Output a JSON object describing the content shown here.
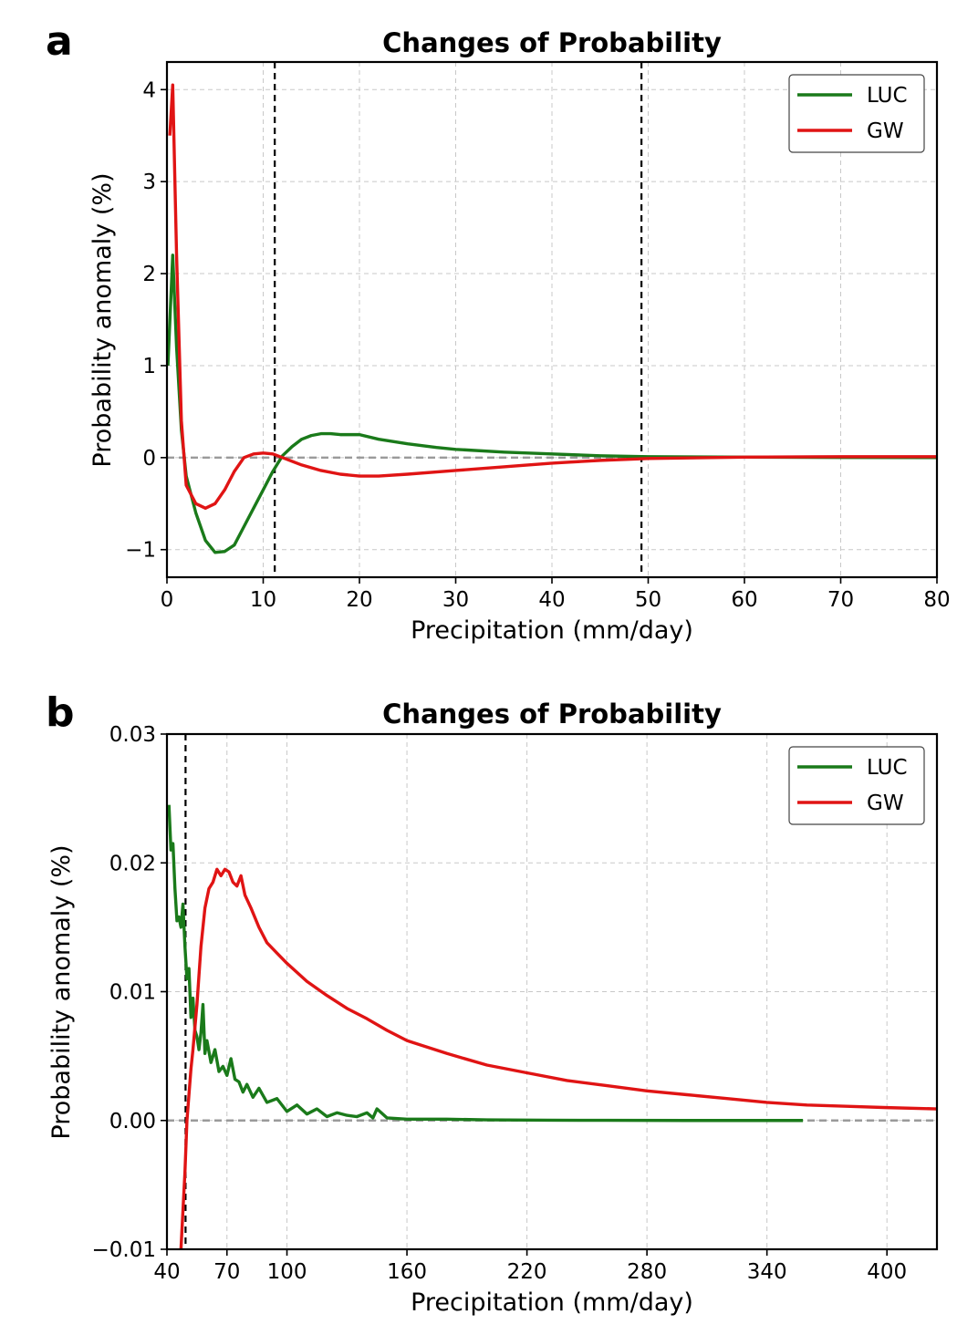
{
  "figure": {
    "panels": [
      {
        "letter": "a",
        "title": "Changes of Probability",
        "xlabel": "Precipitation (mm/day)",
        "ylabel": "Probability anomaly (%)",
        "legend": [
          {
            "label": "LUC",
            "color": "#1a7a1a"
          },
          {
            "label": "GW",
            "color": "#e01414"
          }
        ]
      },
      {
        "letter": "b",
        "title": "Changes of Probability",
        "xlabel": "Precipitation (mm/day)",
        "ylabel": "Probability anomaly (%)",
        "legend": [
          {
            "label": "LUC",
            "color": "#1a7a1a"
          },
          {
            "label": "GW",
            "color": "#e01414"
          }
        ]
      }
    ]
  },
  "chart_data": [
    {
      "type": "line",
      "title": "Changes of Probability",
      "xlabel": "Precipitation (mm/day)",
      "ylabel": "Probability anomaly (%)",
      "xlim": [
        0,
        80
      ],
      "ylim": [
        -1.3,
        4.3
      ],
      "xticks": [
        0,
        10,
        20,
        30,
        40,
        50,
        60,
        70,
        80
      ],
      "xtick_labels": [
        "0",
        "10",
        "20",
        "30",
        "40",
        "50",
        "60",
        "70",
        "80"
      ],
      "yticks": [
        -1,
        0,
        1,
        2,
        3,
        4
      ],
      "ytick_labels": [
        "−1",
        "0",
        "1",
        "2",
        "3",
        "4"
      ],
      "grid": true,
      "legend_position": "top-right",
      "reference_lines": {
        "vertical_dashed": [
          11.2,
          49.3
        ],
        "horizontal_dashed": [
          0
        ]
      },
      "series": [
        {
          "name": "LUC",
          "color": "#1a7a1a",
          "x": [
            0.1,
            0.6,
            1.0,
            1.5,
            2.0,
            3.0,
            4.0,
            5.0,
            6.0,
            7.0,
            8.0,
            9.0,
            10.0,
            11.0,
            12.0,
            13.0,
            14.0,
            15.0,
            16.0,
            17.0,
            18.0,
            20.0,
            22.0,
            25.0,
            28.0,
            30.0,
            35.0,
            40.0,
            45.0,
            50.0,
            60.0,
            70.0,
            80.0
          ],
          "y": [
            1.0,
            2.2,
            1.2,
            0.3,
            -0.2,
            -0.6,
            -0.9,
            -1.03,
            -1.02,
            -0.95,
            -0.75,
            -0.55,
            -0.35,
            -0.15,
            0.02,
            0.12,
            0.2,
            0.24,
            0.26,
            0.26,
            0.25,
            0.25,
            0.2,
            0.15,
            0.11,
            0.09,
            0.06,
            0.04,
            0.02,
            0.01,
            0.005,
            0.002,
            0.0
          ]
        },
        {
          "name": "GW",
          "color": "#e01414",
          "x": [
            0.3,
            0.6,
            1.0,
            1.5,
            2.0,
            3.0,
            4.0,
            5.0,
            6.0,
            7.0,
            8.0,
            9.0,
            10.0,
            11.0,
            12.0,
            14.0,
            16.0,
            18.0,
            20.0,
            22.0,
            25.0,
            30.0,
            35.0,
            40.0,
            45.0,
            50.0,
            60.0,
            70.0,
            80.0
          ],
          "y": [
            3.5,
            4.05,
            2.2,
            0.4,
            -0.3,
            -0.5,
            -0.55,
            -0.5,
            -0.35,
            -0.15,
            0.0,
            0.04,
            0.05,
            0.04,
            0.0,
            -0.08,
            -0.14,
            -0.18,
            -0.2,
            -0.2,
            -0.18,
            -0.14,
            -0.1,
            -0.06,
            -0.03,
            -0.01,
            0.005,
            0.01,
            0.01
          ]
        }
      ]
    },
    {
      "type": "line",
      "title": "Changes of Probability",
      "xlabel": "Precipitation (mm/day)",
      "ylabel": "Probability anomaly (%)",
      "xlim": [
        40,
        425
      ],
      "ylim": [
        -0.01,
        0.03
      ],
      "xticks": [
        40,
        70,
        100,
        160,
        220,
        280,
        340,
        400
      ],
      "xtick_labels": [
        "40",
        "70",
        "100",
        "160",
        "220",
        "280",
        "340",
        "400"
      ],
      "yticks": [
        -0.01,
        0.0,
        0.01,
        0.02,
        0.03
      ],
      "ytick_labels": [
        "−0.01",
        "0.00",
        "0.01",
        "0.02",
        "0.03"
      ],
      "grid": true,
      "legend_position": "top-right",
      "reference_lines": {
        "vertical_dashed": [
          49.3
        ],
        "horizontal_dashed": [
          0
        ]
      },
      "series": [
        {
          "name": "LUC",
          "color": "#1a7a1a",
          "x": [
            41,
            42,
            43,
            44,
            45,
            46,
            47,
            48,
            49,
            50,
            51,
            52,
            53,
            54,
            55,
            56,
            57,
            58,
            59,
            60,
            62,
            64,
            66,
            68,
            70,
            72,
            74,
            76,
            78,
            80,
            83,
            86,
            90,
            95,
            100,
            105,
            110,
            115,
            120,
            125,
            130,
            135,
            140,
            143,
            145,
            150,
            160,
            180,
            200,
            230,
            260,
            300,
            340,
            358
          ],
          "y": [
            0.0245,
            0.021,
            0.0215,
            0.018,
            0.0155,
            0.0158,
            0.015,
            0.0168,
            0.0135,
            0.011,
            0.0118,
            0.008,
            0.0095,
            0.007,
            0.0065,
            0.0055,
            0.0068,
            0.009,
            0.0052,
            0.0062,
            0.0045,
            0.0055,
            0.0038,
            0.0042,
            0.0035,
            0.0048,
            0.0032,
            0.003,
            0.0022,
            0.0028,
            0.0018,
            0.0025,
            0.0014,
            0.0017,
            0.0007,
            0.0012,
            0.0005,
            0.0009,
            0.0003,
            0.0006,
            0.0004,
            0.0003,
            0.0006,
            0.0002,
            0.0009,
            0.0002,
            0.0001,
            0.0001,
            5e-05,
            2e-05,
            1e-05,
            0.0,
            0.0,
            0.0
          ]
        },
        {
          "name": "GW",
          "color": "#e01414",
          "x": [
            47,
            48,
            49,
            50,
            51,
            52,
            53,
            55,
            57,
            59,
            61,
            63,
            65,
            67,
            69,
            71,
            73,
            75,
            77,
            79,
            82,
            86,
            90,
            95,
            100,
            110,
            120,
            130,
            140,
            150,
            160,
            180,
            200,
            220,
            240,
            260,
            280,
            300,
            320,
            340,
            360,
            380,
            400,
            425
          ],
          "y": [
            -0.01,
            -0.007,
            -0.004,
            0.0,
            0.002,
            0.004,
            0.0055,
            0.009,
            0.0135,
            0.0165,
            0.018,
            0.0185,
            0.0195,
            0.019,
            0.0195,
            0.0193,
            0.0185,
            0.0182,
            0.019,
            0.0175,
            0.0165,
            0.015,
            0.0138,
            0.013,
            0.0122,
            0.0108,
            0.0097,
            0.0087,
            0.0079,
            0.007,
            0.0062,
            0.0052,
            0.0043,
            0.0037,
            0.0031,
            0.0027,
            0.0023,
            0.002,
            0.0017,
            0.0014,
            0.0012,
            0.0011,
            0.001,
            0.0009
          ]
        }
      ]
    }
  ]
}
